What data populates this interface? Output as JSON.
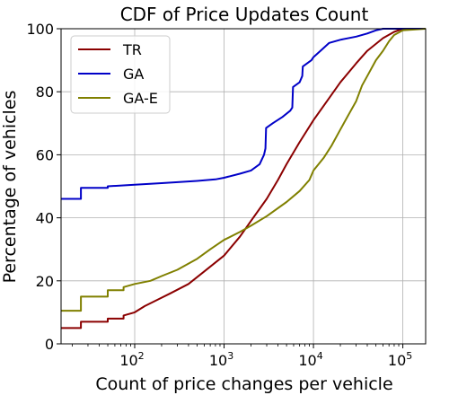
{
  "chart_data": {
    "type": "line",
    "title": "CDF of Price Updates Count",
    "xlabel": "Count of price changes per vehicle",
    "ylabel": "Percentage of vehicles",
    "xscale": "log",
    "xlim": [
      15,
      180000
    ],
    "ylim": [
      0,
      100
    ],
    "xticks": [
      {
        "value": 100,
        "base": "10",
        "exp": "2"
      },
      {
        "value": 1000,
        "base": "10",
        "exp": "3"
      },
      {
        "value": 10000,
        "base": "10",
        "exp": "4"
      },
      {
        "value": 100000,
        "base": "10",
        "exp": "5"
      }
    ],
    "yticks": [
      0,
      20,
      40,
      60,
      80,
      100
    ],
    "grid": true,
    "legend_position": "top-left",
    "series": [
      {
        "name": "TR",
        "color": "#8b0000",
        "points": [
          [
            15,
            5
          ],
          [
            25,
            5
          ],
          [
            25,
            7
          ],
          [
            50,
            7
          ],
          [
            50,
            8
          ],
          [
            75,
            8
          ],
          [
            75,
            9
          ],
          [
            100,
            10
          ],
          [
            130,
            12
          ],
          [
            180,
            14
          ],
          [
            250,
            16
          ],
          [
            400,
            19
          ],
          [
            600,
            23
          ],
          [
            1000,
            28
          ],
          [
            1500,
            34
          ],
          [
            2000,
            39
          ],
          [
            3000,
            46
          ],
          [
            4000,
            52
          ],
          [
            5000,
            57
          ],
          [
            7000,
            64
          ],
          [
            10000,
            71
          ],
          [
            15000,
            78
          ],
          [
            20000,
            83
          ],
          [
            30000,
            89
          ],
          [
            40000,
            93
          ],
          [
            60000,
            97
          ],
          [
            80000,
            99
          ],
          [
            100000,
            100
          ],
          [
            180000,
            100
          ]
        ]
      },
      {
        "name": "GA",
        "color": "#0000c8",
        "points": [
          [
            15,
            46
          ],
          [
            25,
            46
          ],
          [
            25,
            49.5
          ],
          [
            50,
            49.5
          ],
          [
            50,
            50
          ],
          [
            100,
            50.5
          ],
          [
            200,
            51
          ],
          [
            500,
            51.7
          ],
          [
            800,
            52.2
          ],
          [
            1000,
            52.7
          ],
          [
            1500,
            54
          ],
          [
            2000,
            55
          ],
          [
            2500,
            57
          ],
          [
            2800,
            60
          ],
          [
            2900,
            62
          ],
          [
            2950,
            68.5
          ],
          [
            3500,
            70
          ],
          [
            4500,
            72
          ],
          [
            5500,
            74
          ],
          [
            5800,
            75
          ],
          [
            5900,
            81.5
          ],
          [
            7000,
            83
          ],
          [
            7500,
            85
          ],
          [
            7600,
            88
          ],
          [
            8500,
            89
          ],
          [
            9500,
            90
          ],
          [
            10000,
            91
          ],
          [
            12000,
            93
          ],
          [
            15000,
            95.5
          ],
          [
            20000,
            96.5
          ],
          [
            30000,
            97.5
          ],
          [
            40000,
            98.5
          ],
          [
            50000,
            99.5
          ],
          [
            60000,
            100
          ],
          [
            180000,
            100
          ]
        ]
      },
      {
        "name": "GA-E",
        "color": "#808000",
        "points": [
          [
            15,
            10.5
          ],
          [
            25,
            10.5
          ],
          [
            25,
            15
          ],
          [
            50,
            15
          ],
          [
            50,
            17
          ],
          [
            75,
            17
          ],
          [
            75,
            18
          ],
          [
            100,
            19
          ],
          [
            150,
            20
          ],
          [
            200,
            21.5
          ],
          [
            300,
            23.5
          ],
          [
            500,
            27
          ],
          [
            700,
            30
          ],
          [
            1000,
            33
          ],
          [
            1500,
            35.5
          ],
          [
            2000,
            37.5
          ],
          [
            3000,
            40.5
          ],
          [
            5000,
            45
          ],
          [
            7000,
            48.5
          ],
          [
            9000,
            52
          ],
          [
            10000,
            55
          ],
          [
            13000,
            59
          ],
          [
            16000,
            63
          ],
          [
            20000,
            68
          ],
          [
            25000,
            73
          ],
          [
            30000,
            77
          ],
          [
            35000,
            82
          ],
          [
            40000,
            85
          ],
          [
            50000,
            90
          ],
          [
            60000,
            93
          ],
          [
            70000,
            96
          ],
          [
            80000,
            98
          ],
          [
            100000,
            99.5
          ],
          [
            180000,
            100
          ]
        ]
      }
    ]
  }
}
